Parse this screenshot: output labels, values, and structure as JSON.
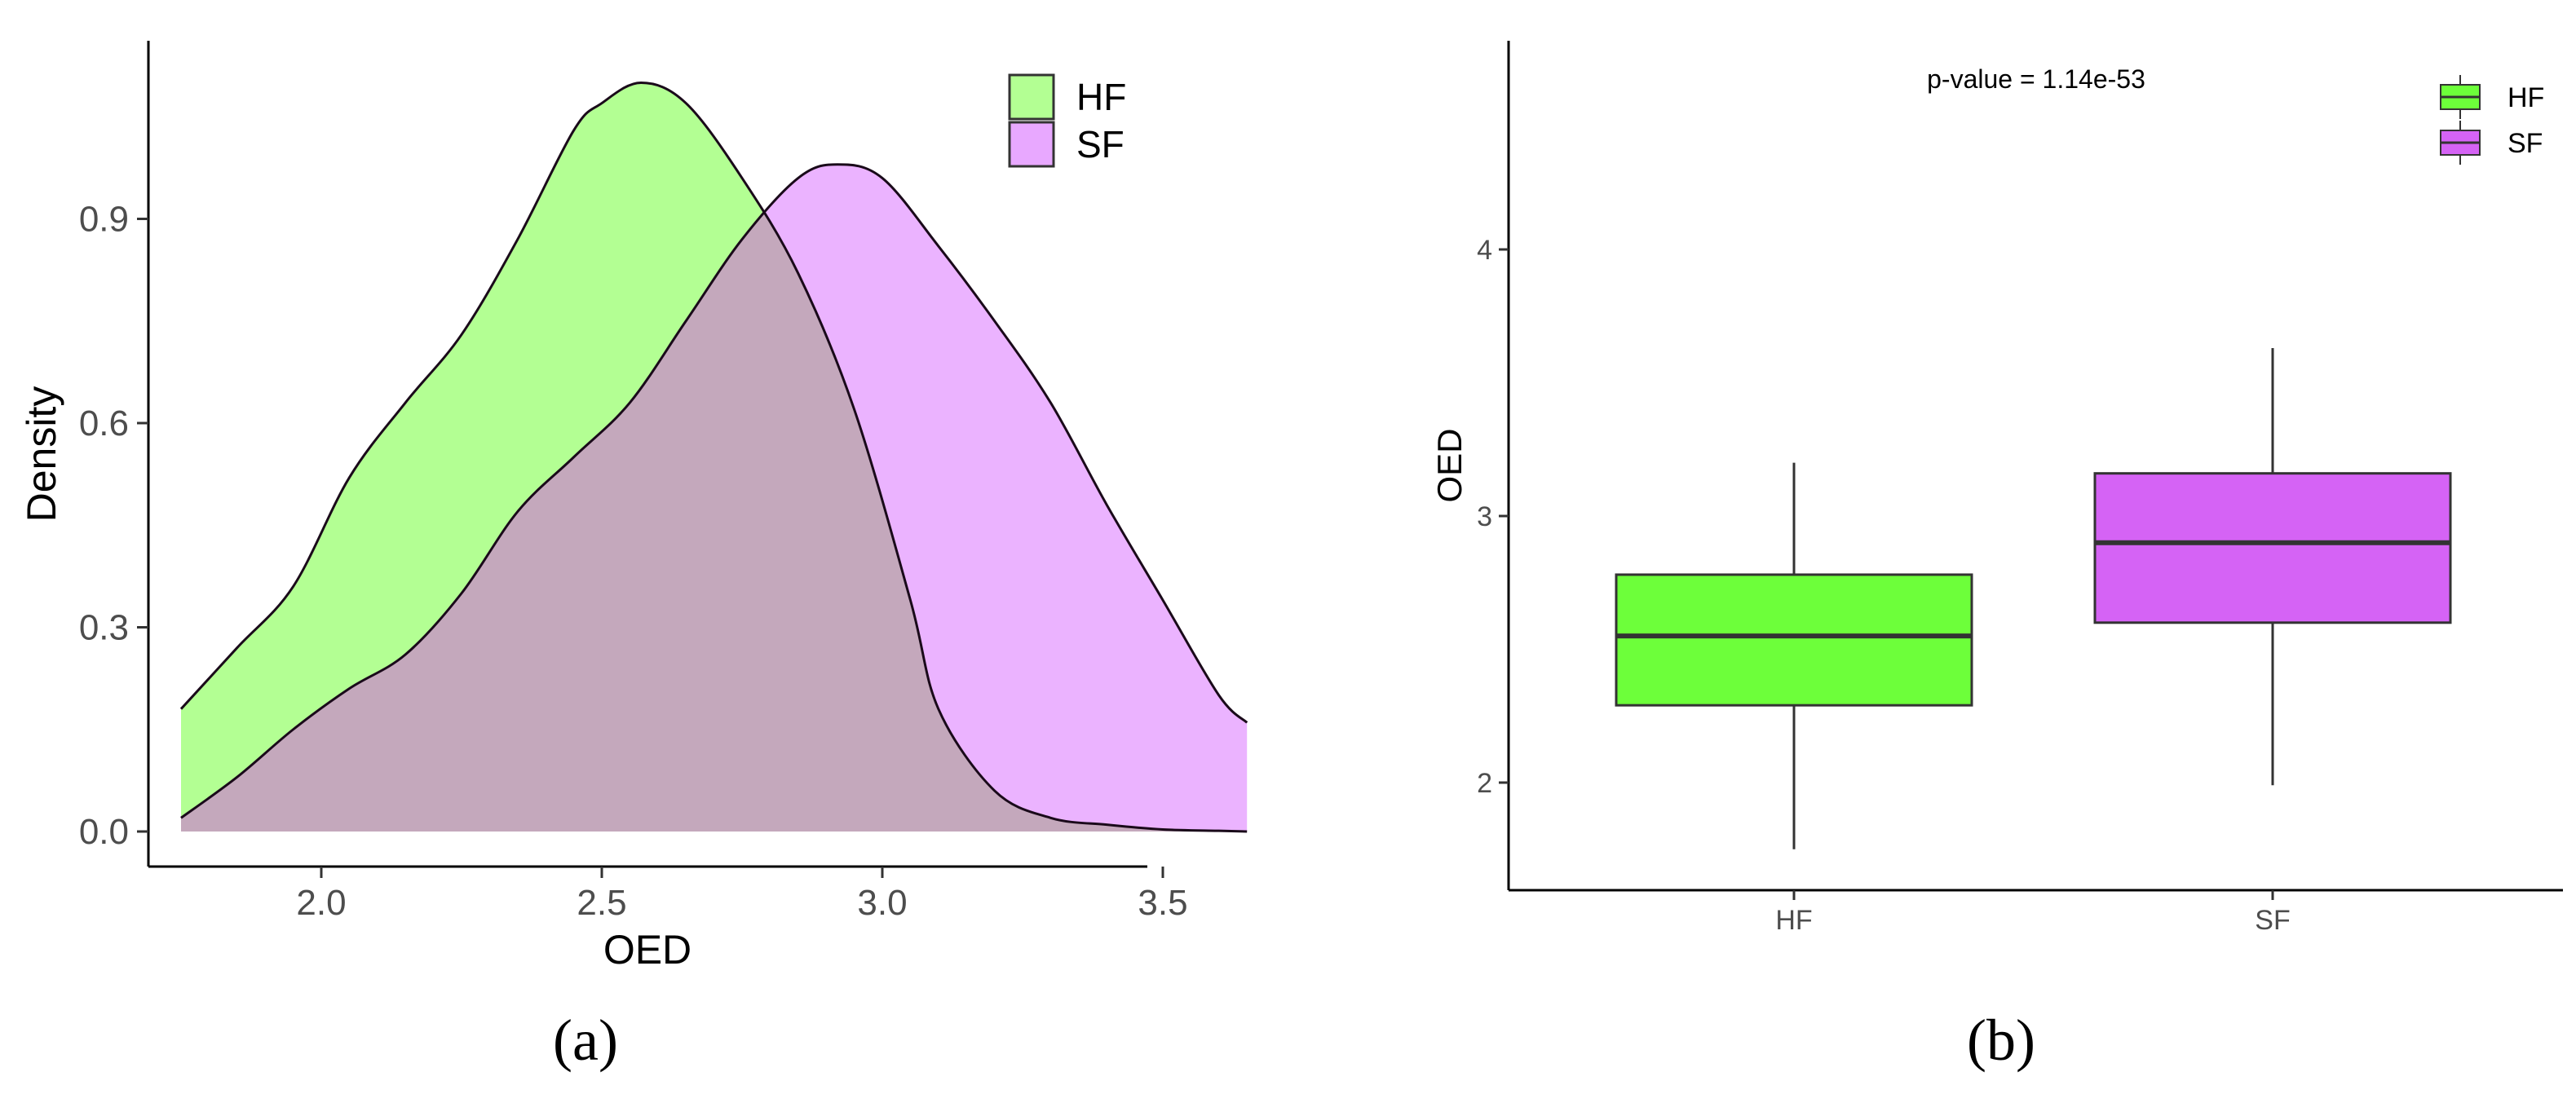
{
  "chart_data": [
    {
      "panel_label": "(a)",
      "type": "area",
      "xlabel": "OED",
      "ylabel": "Density",
      "xlim": [
        1.75,
        3.65
      ],
      "ylim": [
        0,
        1.1
      ],
      "xticks": [
        "2.0",
        "2.5",
        "3.0",
        "3.5"
      ],
      "yticks": [
        "0.0",
        "0.3",
        "0.6",
        "0.9"
      ],
      "legend": {
        "placement": "top-right",
        "entries": [
          "HF",
          "SF"
        ]
      },
      "grid": false,
      "series": [
        {
          "name": "HF",
          "color": "#b3ff93",
          "x": [
            1.75,
            1.85,
            1.95,
            2.05,
            2.15,
            2.25,
            2.35,
            2.45,
            2.5,
            2.57,
            2.65,
            2.75,
            2.85,
            2.95,
            3.05,
            3.1,
            3.2,
            3.3,
            3.4,
            3.5,
            3.6,
            3.65
          ],
          "y": [
            0.18,
            0.27,
            0.36,
            0.52,
            0.63,
            0.73,
            0.87,
            1.03,
            1.07,
            1.1,
            1.07,
            0.96,
            0.82,
            0.62,
            0.34,
            0.18,
            0.06,
            0.02,
            0.01,
            0.003,
            0.001,
            0.0
          ]
        },
        {
          "name": "SF",
          "color": "#e8a8ff",
          "x": [
            1.75,
            1.85,
            1.95,
            2.05,
            2.15,
            2.25,
            2.35,
            2.45,
            2.55,
            2.65,
            2.75,
            2.85,
            2.92,
            3.0,
            3.1,
            3.2,
            3.3,
            3.4,
            3.5,
            3.6,
            3.65
          ],
          "y": [
            0.02,
            0.08,
            0.15,
            0.21,
            0.26,
            0.35,
            0.47,
            0.55,
            0.63,
            0.75,
            0.87,
            0.96,
            0.98,
            0.96,
            0.86,
            0.75,
            0.63,
            0.48,
            0.34,
            0.2,
            0.16
          ]
        }
      ]
    },
    {
      "panel_label": "(b)",
      "type": "box",
      "ylabel": "OED",
      "categories": [
        "HF",
        "SF"
      ],
      "yticks": [
        "2",
        "3",
        "4"
      ],
      "ylim": [
        1.6,
        4.8
      ],
      "annotation": "p-value = 1.14e-53",
      "legend": {
        "placement": "top-right",
        "entries": [
          "HF",
          "SF"
        ]
      },
      "grid": false,
      "series": [
        {
          "name": "HF",
          "color": "#6dff3a",
          "min": 1.75,
          "q1": 2.29,
          "median": 2.55,
          "q3": 2.78,
          "max": 3.2
        },
        {
          "name": "SF",
          "color": "#d563f5",
          "min": 1.99,
          "q1": 2.6,
          "median": 2.9,
          "q3": 3.16,
          "max": 3.63
        }
      ]
    }
  ]
}
